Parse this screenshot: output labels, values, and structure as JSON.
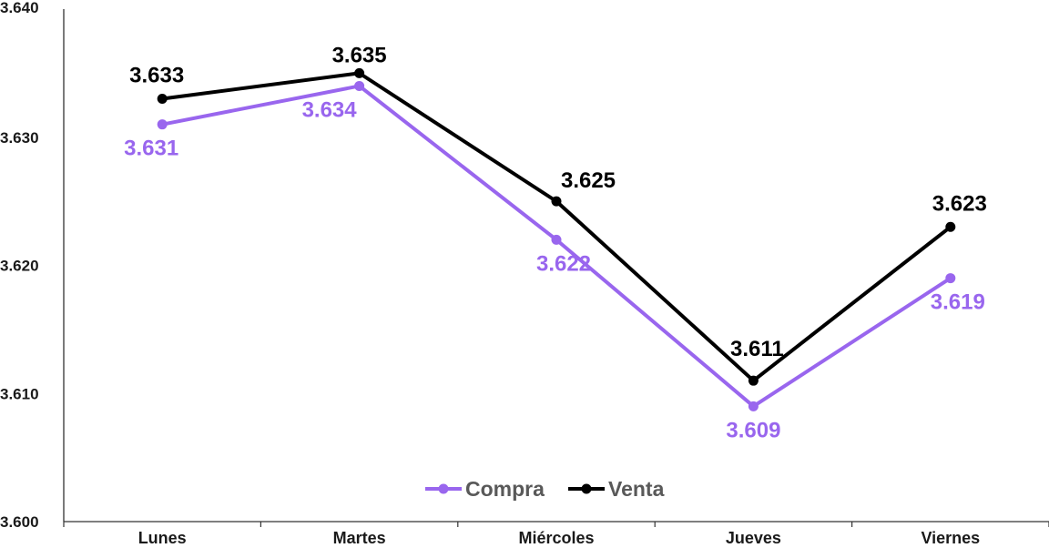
{
  "chart_data": {
    "type": "line",
    "categories": [
      "Lunes",
      "Martes",
      "Miércoles",
      "Jueves",
      "Viernes"
    ],
    "series": [
      {
        "name": "Compra",
        "values": [
          3.631,
          3.634,
          3.622,
          3.609,
          3.619
        ],
        "labels": [
          "3.631",
          "3.634",
          "3.622",
          "3.609",
          "3.619"
        ],
        "color": "#9966ee"
      },
      {
        "name": "Venta",
        "values": [
          3.633,
          3.635,
          3.625,
          3.611,
          3.623
        ],
        "labels": [
          "3.633",
          "3.635",
          "3.625",
          "3.611",
          "3.623"
        ],
        "color": "#000000"
      }
    ],
    "ylim": [
      3.6,
      3.64
    ],
    "yticks": [
      3.6,
      3.61,
      3.62,
      3.63,
      3.64
    ],
    "ytick_labels": [
      "3.600",
      "3.610",
      "3.620",
      "3.630",
      "3.640"
    ],
    "title": "",
    "xlabel": "",
    "ylabel": "",
    "grid": false,
    "legend_position": "bottom-center"
  }
}
